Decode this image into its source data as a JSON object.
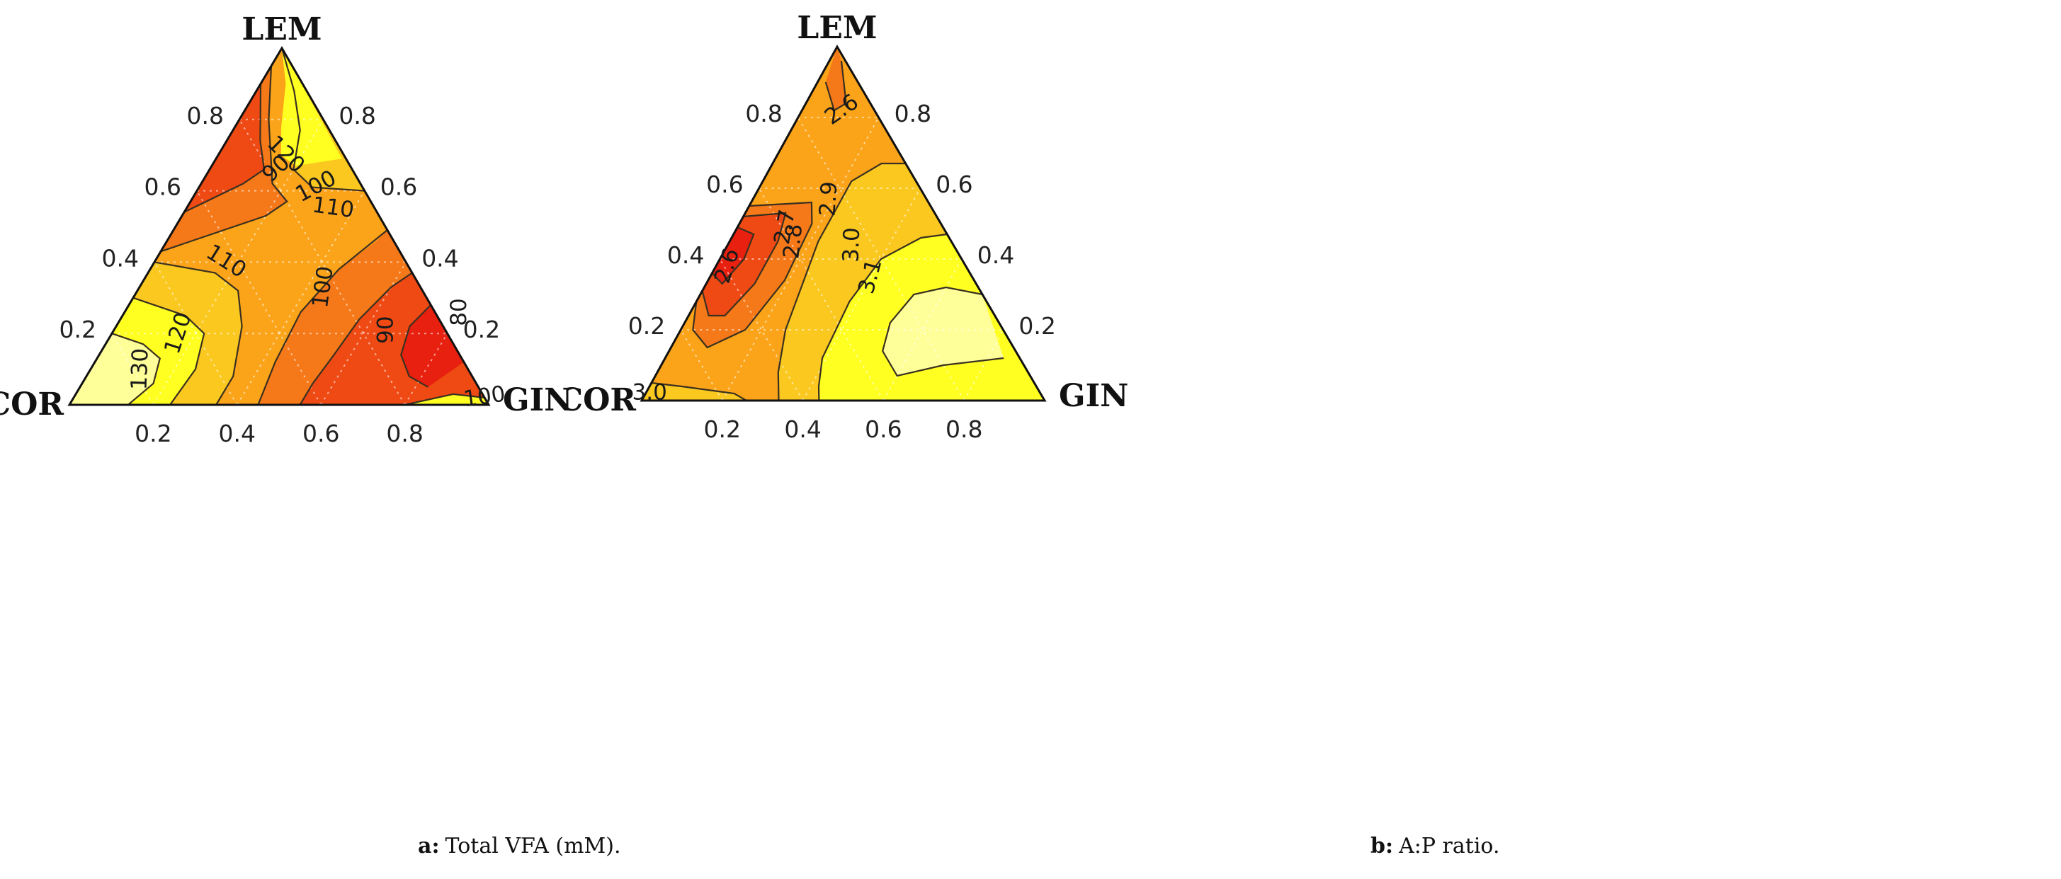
{
  "colors": {
    "level1": "#ffff99",
    "level2": "#ffff22",
    "level3": "#fbc81f",
    "level4": "#fba41a",
    "level5": "#f57918",
    "level6": "#ef4a14",
    "level7": "#e8200f",
    "contour_line": "#3a3020",
    "axis_line": "#111111",
    "grid": "#ffffff"
  },
  "chart_data": [
    {
      "type": "ternary-contour",
      "caption_letter": "a:",
      "caption_text": "Total VFA (mM).",
      "vertices": {
        "top": "LEM",
        "left": "COR",
        "right": "GIN"
      },
      "axis_ticks": {
        "left_edge": [
          "0.2",
          "0.4",
          "0.6",
          "0.8"
        ],
        "right_edge": [
          "0.8",
          "0.6",
          "0.4",
          "0.2"
        ],
        "bottom_edge": [
          "0.2",
          "0.4",
          "0.6",
          "0.8"
        ]
      },
      "contour_levels": [
        "80",
        "90",
        "100",
        "110",
        "120",
        "130"
      ],
      "contour_labels": [
        {
          "text": "90",
          "GIN": 0.16,
          "LEM": 0.66,
          "angle": -42
        },
        {
          "text": "100",
          "GIN": 0.28,
          "LEM": 0.61,
          "angle": -28
        },
        {
          "text": "120",
          "GIN": 0.16,
          "LEM": 0.7,
          "angle": 45
        },
        {
          "text": "110",
          "GIN": 0.35,
          "LEM": 0.55,
          "angle": 8
        },
        {
          "text": "110",
          "GIN": 0.17,
          "LEM": 0.4,
          "angle": 32
        },
        {
          "text": "100",
          "GIN": 0.44,
          "LEM": 0.33,
          "angle": -82
        },
        {
          "text": "120",
          "GIN": 0.16,
          "LEM": 0.2,
          "angle": -72
        },
        {
          "text": "130",
          "GIN": 0.12,
          "LEM": 0.1,
          "angle": -88
        },
        {
          "text": "90",
          "GIN": 0.65,
          "LEM": 0.21,
          "angle": -90
        },
        {
          "text": "80",
          "GIN": 0.8,
          "LEM": 0.26,
          "angle": -90
        },
        {
          "text": "100",
          "GIN": 0.98,
          "LEM": 0.02,
          "angle": -8
        }
      ]
    },
    {
      "type": "ternary-contour",
      "caption_letter": "b:",
      "caption_text": "A:P ratio.",
      "vertices": {
        "top": "LEM",
        "left": "COR",
        "right": "GIN"
      },
      "axis_ticks": {
        "left_edge": [
          "0.2",
          "0.4",
          "0.6",
          "0.8"
        ],
        "right_edge": [
          "0.8",
          "0.6",
          "0.4",
          "0.2"
        ],
        "bottom_edge": [
          "0.2",
          "0.4",
          "0.6",
          "0.8"
        ]
      },
      "contour_levels": [
        "2.6",
        "2.7",
        "2.8",
        "2.9",
        "3.0",
        "3.1"
      ],
      "contour_labels": [
        {
          "text": "2.6",
          "GIN": 0.03,
          "LEM": 0.38,
          "angle": -72
        },
        {
          "text": "2.7",
          "GIN": 0.12,
          "LEM": 0.49,
          "angle": -80
        },
        {
          "text": "2.8",
          "GIN": 0.16,
          "LEM": 0.45,
          "angle": -84
        },
        {
          "text": "2.9",
          "GIN": 0.19,
          "LEM": 0.57,
          "angle": -86
        },
        {
          "text": "3.0",
          "GIN": 0.31,
          "LEM": 0.44,
          "angle": -88
        },
        {
          "text": "3.1",
          "GIN": 0.4,
          "LEM": 0.35,
          "angle": -75
        },
        {
          "text": "2.6",
          "GIN": 0.1,
          "LEM": 0.82,
          "angle": -35
        },
        {
          "text": "3.0",
          "GIN": 0.01,
          "LEM": 0.02,
          "angle": 0
        }
      ]
    }
  ]
}
